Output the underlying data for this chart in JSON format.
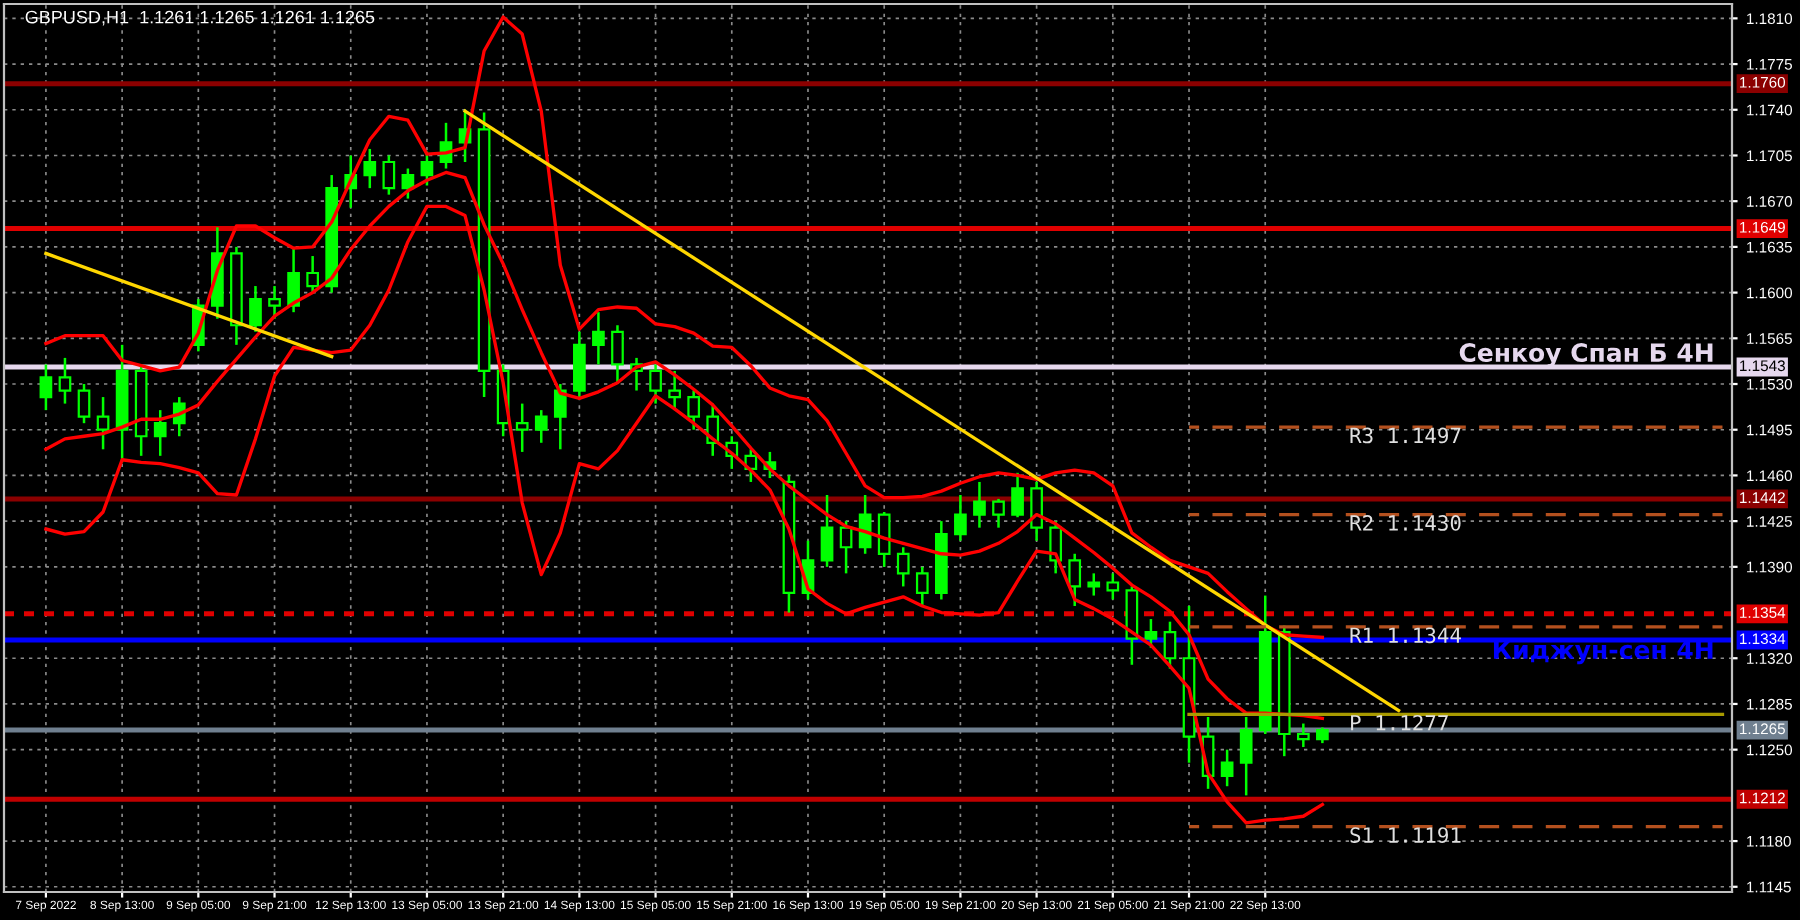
{
  "chart_data": {
    "type": "candlestick",
    "title": "GBPUSD,H1  1.1261 1.1265 1.1261 1.1265",
    "categories": [
      "7 Sep 2022",
      null,
      null,
      null,
      "8 Sep 13:00",
      null,
      null,
      null,
      "9 Sep 05:00",
      null,
      null,
      null,
      "9 Sep 21:00",
      null,
      null,
      null,
      "12 Sep 13:00",
      null,
      null,
      null,
      "13 Sep 05:00",
      null,
      null,
      null,
      "13 Sep 21:00",
      null,
      null,
      null,
      "14 Sep 13:00",
      null,
      null,
      null,
      "15 Sep 05:00",
      null,
      null,
      null,
      "15 Sep 21:00",
      null,
      null,
      null,
      "16 Sep 13:00",
      null,
      null,
      null,
      "19 Sep 05:00",
      null,
      null,
      null,
      "19 Sep 21:00",
      null,
      null,
      null,
      "20 Sep 13:00",
      null,
      null,
      null,
      "21 Sep 05:00",
      null,
      null,
      null,
      "21 Sep 21:00",
      null,
      null,
      null,
      "22 Sep 13:00",
      null,
      null,
      null,
      null,
      null,
      null,
      null,
      null,
      null,
      null,
      null,
      null,
      null,
      null,
      null,
      null,
      null,
      null,
      null,
      null,
      null,
      null,
      null,
      null
    ],
    "ohlc": [
      [
        1.152,
        1.1545,
        1.151,
        1.1535
      ],
      [
        1.1535,
        1.155,
        1.1515,
        1.1525
      ],
      [
        1.1525,
        1.153,
        1.15,
        1.1505
      ],
      [
        1.1505,
        1.152,
        1.148,
        1.1495
      ],
      [
        1.1495,
        1.156,
        1.147,
        1.154
      ],
      [
        1.154,
        1.1545,
        1.1475,
        1.149
      ],
      [
        1.149,
        1.151,
        1.1475,
        1.15
      ],
      [
        1.15,
        1.152,
        1.149,
        1.1515
      ],
      [
        1.156,
        1.1595,
        1.1555,
        1.159
      ],
      [
        1.159,
        1.165,
        1.158,
        1.163
      ],
      [
        1.163,
        1.1635,
        1.156,
        1.1575
      ],
      [
        1.1575,
        1.1605,
        1.157,
        1.1595
      ],
      [
        1.1595,
        1.1605,
        1.158,
        1.159
      ],
      [
        1.159,
        1.1635,
        1.1585,
        1.1615
      ],
      [
        1.1615,
        1.1628,
        1.16,
        1.1605
      ],
      [
        1.1605,
        1.169,
        1.16,
        1.168
      ],
      [
        1.168,
        1.1705,
        1.1665,
        1.169
      ],
      [
        1.169,
        1.171,
        1.168,
        1.17
      ],
      [
        1.17,
        1.1705,
        1.1675,
        1.168
      ],
      [
        1.168,
        1.1695,
        1.1672,
        1.169
      ],
      [
        1.169,
        1.1708,
        1.1682,
        1.17
      ],
      [
        1.17,
        1.173,
        1.1695,
        1.1715
      ],
      [
        1.1715,
        1.174,
        1.17,
        1.1725
      ],
      [
        1.1725,
        1.1738,
        1.152,
        1.154
      ],
      [
        1.154,
        1.1545,
        1.149,
        1.15
      ],
      [
        1.15,
        1.1515,
        1.1478,
        1.1495
      ],
      [
        1.1495,
        1.151,
        1.1485,
        1.1505
      ],
      [
        1.1505,
        1.153,
        1.148,
        1.1525
      ],
      [
        1.1525,
        1.157,
        1.152,
        1.156
      ],
      [
        1.156,
        1.1585,
        1.1545,
        1.157
      ],
      [
        1.157,
        1.1575,
        1.153,
        1.1545
      ],
      [
        1.1545,
        1.155,
        1.1525,
        1.154
      ],
      [
        1.154,
        1.1545,
        1.1515,
        1.1525
      ],
      [
        1.1525,
        1.154,
        1.151,
        1.152
      ],
      [
        1.152,
        1.1525,
        1.1495,
        1.1505
      ],
      [
        1.1505,
        1.1515,
        1.1475,
        1.1485
      ],
      [
        1.1485,
        1.149,
        1.1465,
        1.1475
      ],
      [
        1.1475,
        1.148,
        1.1455,
        1.1465
      ],
      [
        1.1465,
        1.1478,
        1.1458,
        1.147
      ],
      [
        1.1455,
        1.146,
        1.1355,
        1.137
      ],
      [
        1.137,
        1.141,
        1.1365,
        1.1395
      ],
      [
        1.1395,
        1.1445,
        1.139,
        1.142
      ],
      [
        1.142,
        1.1425,
        1.1385,
        1.1405
      ],
      [
        1.1405,
        1.1445,
        1.14,
        1.143
      ],
      [
        1.143,
        1.1432,
        1.139,
        1.14
      ],
      [
        1.14,
        1.1405,
        1.1375,
        1.1385
      ],
      [
        1.1385,
        1.139,
        1.136,
        1.137
      ],
      [
        1.137,
        1.1425,
        1.1365,
        1.1415
      ],
      [
        1.1415,
        1.1445,
        1.141,
        1.143
      ],
      [
        1.143,
        1.1455,
        1.142,
        1.144
      ],
      [
        1.144,
        1.1442,
        1.142,
        1.143
      ],
      [
        1.143,
        1.1462,
        1.1428,
        1.145
      ],
      [
        1.145,
        1.1455,
        1.141,
        1.142
      ],
      [
        1.142,
        1.1425,
        1.1385,
        1.1395
      ],
      [
        1.1395,
        1.14,
        1.136,
        1.1375
      ],
      [
        1.1375,
        1.1385,
        1.1368,
        1.1378
      ],
      [
        1.1378,
        1.1385,
        1.1365,
        1.1372
      ],
      [
        1.1372,
        1.1375,
        1.1315,
        1.1335
      ],
      [
        1.1335,
        1.135,
        1.1328,
        1.134
      ],
      [
        1.134,
        1.1348,
        1.1312,
        1.132
      ],
      [
        1.132,
        1.136,
        1.124,
        1.126
      ],
      [
        1.126,
        1.1275,
        1.122,
        1.123
      ],
      [
        1.123,
        1.125,
        1.1222,
        1.124
      ],
      [
        1.124,
        1.1275,
        1.1215,
        1.1265
      ],
      [
        1.1265,
        1.1368,
        1.1262,
        1.134
      ],
      [
        1.134,
        1.1345,
        1.1245,
        1.1262
      ],
      [
        1.1262,
        1.127,
        1.1252,
        1.1258
      ],
      [
        1.1258,
        1.1267,
        1.1255,
        1.1265
      ],
      null,
      null,
      null,
      null,
      null,
      null,
      null,
      null,
      null,
      null,
      null,
      null,
      null,
      null,
      null,
      null,
      null,
      null,
      null,
      null,
      null
    ],
    "color": "#00ff00",
    "series": [
      {
        "type": "line",
        "color": "#ff0000",
        "values": [
          1.1561,
          1.1567,
          1.1567,
          1.1567,
          1.1548,
          1.1544,
          1.154,
          1.1543,
          1.1569,
          1.1617,
          1.1651,
          1.1651,
          1.1642,
          1.1634,
          1.1635,
          1.1654,
          1.1686,
          1.1717,
          1.1735,
          1.1732,
          1.1706,
          1.1707,
          1.1711,
          1.1785,
          1.1811,
          1.1798,
          1.1739,
          1.1621,
          1.1572,
          1.1587,
          1.1589,
          1.1588,
          1.1576,
          1.1574,
          1.1569,
          1.1559,
          1.1558,
          1.1544,
          1.1527,
          1.1521,
          1.1518,
          1.1502,
          1.1477,
          1.1452,
          1.1443,
          1.1443,
          1.1444,
          1.1448,
          1.1454,
          1.1459,
          1.1462,
          1.146,
          1.1457,
          1.1462,
          1.1464,
          1.1462,
          1.1452,
          1.1416,
          1.1405,
          1.1395,
          1.139,
          1.1385,
          1.1371,
          1.1358,
          1.1345,
          1.1338,
          1.1337,
          1.1336,
          null,
          null,
          null,
          null,
          null,
          null,
          null,
          null,
          null,
          null,
          null,
          null,
          null,
          null,
          null,
          null,
          null,
          null,
          null,
          null,
          null
        ]
      },
      {
        "type": "line",
        "color": "#ff0000",
        "values": [
          1.148,
          1.1488,
          1.149,
          1.1492,
          1.1497,
          1.1503,
          1.1503,
          1.1507,
          1.1514,
          1.1532,
          1.1549,
          1.1566,
          1.1582,
          1.1592,
          1.16,
          1.1611,
          1.1633,
          1.1651,
          1.1666,
          1.1678,
          1.1686,
          1.1692,
          1.1688,
          1.1652,
          1.1622,
          1.1587,
          1.1554,
          1.1523,
          1.1519,
          1.1524,
          1.1531,
          1.1543,
          1.1547,
          1.1537,
          1.1526,
          1.1514,
          1.1498,
          1.1481,
          1.1465,
          1.1452,
          1.1441,
          1.143,
          1.1421,
          1.1417,
          1.1412,
          1.1408,
          1.1404,
          1.14,
          1.1399,
          1.1402,
          1.1408,
          1.1417,
          1.143,
          1.1423,
          1.1412,
          1.1401,
          1.1389,
          1.1376,
          1.1367,
          1.1356,
          1.1338,
          1.1304,
          1.1289,
          1.1278,
          1.1278,
          1.1277,
          1.1276,
          1.1274,
          null,
          null,
          null,
          null,
          null,
          null,
          null,
          null,
          null,
          null,
          null,
          null,
          null,
          null,
          null,
          null,
          null,
          null,
          null,
          null,
          null
        ]
      },
      {
        "type": "line",
        "color": "#ff0000",
        "values": [
          1.1419,
          1.1415,
          1.1417,
          1.1432,
          1.1472,
          1.147,
          1.1469,
          1.1466,
          1.1462,
          1.1446,
          1.1445,
          1.1488,
          1.1536,
          1.1558,
          1.1556,
          1.1554,
          1.1556,
          1.1575,
          1.1602,
          1.1639,
          1.1666,
          1.1666,
          1.1659,
          1.1602,
          1.1531,
          1.1439,
          1.1384,
          1.1416,
          1.1469,
          1.1465,
          1.1479,
          1.15,
          1.1521,
          1.1511,
          1.15,
          1.1488,
          1.1477,
          1.1464,
          1.1449,
          1.1419,
          1.1373,
          1.1362,
          1.1354,
          1.1359,
          1.1363,
          1.1367,
          1.136,
          1.1355,
          1.1354,
          1.1353,
          1.1355,
          1.1379,
          1.1402,
          1.14,
          1.1365,
          1.1358,
          1.135,
          1.134,
          1.133,
          1.1314,
          1.1297,
          1.1232,
          1.121,
          1.1194,
          1.1196,
          1.1197,
          1.1199,
          1.1208,
          null,
          null,
          null,
          null,
          null,
          null,
          null,
          null,
          null,
          null,
          null,
          null,
          null,
          null,
          null,
          null,
          null,
          null,
          null,
          null,
          null
        ]
      },
      {
        "type": "line",
        "color": "#ffd700",
        "values": [
          1.163,
          null,
          null,
          null,
          null,
          null,
          null,
          null,
          null,
          null,
          null,
          null,
          null,
          null,
          null,
          1.1551,
          null,
          null,
          null,
          null,
          null,
          null,
          null,
          null,
          null,
          null,
          null,
          null,
          null,
          null,
          null,
          null,
          null,
          null,
          null,
          null,
          null,
          null,
          null,
          null,
          null,
          null,
          null,
          null,
          null,
          null,
          null,
          null,
          null,
          null,
          null,
          null,
          null,
          null,
          null,
          null,
          null,
          null,
          null,
          null,
          null,
          null,
          null,
          null,
          null,
          null,
          null,
          null,
          null,
          null,
          null,
          null,
          null,
          null,
          null,
          null,
          null,
          null,
          null,
          null,
          null,
          null,
          null,
          null,
          null,
          null,
          null,
          null,
          null
        ]
      },
      {
        "type": "line",
        "color": "#ffd700",
        "values": [
          null,
          null,
          null,
          null,
          null,
          null,
          null,
          null,
          null,
          null,
          null,
          null,
          null,
          null,
          null,
          null,
          null,
          null,
          null,
          null,
          null,
          null,
          1.1739,
          null,
          null,
          null,
          null,
          null,
          null,
          null,
          null,
          null,
          null,
          null,
          null,
          null,
          null,
          null,
          null,
          null,
          null,
          null,
          null,
          null,
          null,
          null,
          null,
          null,
          null,
          null,
          null,
          null,
          null,
          null,
          null,
          null,
          null,
          null,
          null,
          null,
          null,
          null,
          null,
          null,
          null,
          null,
          null,
          null,
          null,
          null,
          null,
          1.128,
          null,
          null,
          null,
          null,
          null,
          null,
          null,
          null,
          null,
          null,
          null,
          null,
          null,
          null,
          null,
          null,
          null
        ]
      },
      {
        "type": "line",
        "name": "R3 1.1497",
        "color": "#b4501e",
        "line_style": "dashed",
        "values": [
          null,
          null,
          null,
          null,
          null,
          null,
          null,
          null,
          null,
          null,
          null,
          null,
          null,
          null,
          null,
          null,
          null,
          null,
          null,
          null,
          null,
          null,
          null,
          null,
          null,
          null,
          null,
          null,
          null,
          null,
          null,
          null,
          null,
          null,
          null,
          null,
          null,
          null,
          null,
          null,
          null,
          null,
          null,
          null,
          null,
          null,
          null,
          null,
          null,
          null,
          null,
          null,
          null,
          null,
          null,
          null,
          null,
          null,
          null,
          null,
          1.1497,
          1.1497,
          1.1497,
          1.1497,
          1.1497,
          1.1497,
          1.1497,
          1.1497,
          1.1497,
          1.1497,
          1.1497,
          1.1497,
          1.1497,
          1.1497,
          1.1497,
          1.1497,
          1.1497,
          1.1497,
          1.1497,
          1.1497,
          1.1497,
          1.1497,
          1.1497,
          1.1497,
          1.1497,
          1.1497,
          1.1497,
          1.1497,
          1.1497
        ]
      },
      {
        "type": "line",
        "name": "R2 1.1430",
        "color": "#b4501e",
        "line_style": "dashed",
        "values": [
          null,
          null,
          null,
          null,
          null,
          null,
          null,
          null,
          null,
          null,
          null,
          null,
          null,
          null,
          null,
          null,
          null,
          null,
          null,
          null,
          null,
          null,
          null,
          null,
          null,
          null,
          null,
          null,
          null,
          null,
          null,
          null,
          null,
          null,
          null,
          null,
          null,
          null,
          null,
          null,
          null,
          null,
          null,
          null,
          null,
          null,
          null,
          null,
          null,
          null,
          null,
          null,
          null,
          null,
          null,
          null,
          null,
          null,
          null,
          null,
          1.143,
          1.143,
          1.143,
          1.143,
          1.143,
          1.143,
          1.143,
          1.143,
          1.143,
          1.143,
          1.143,
          1.143,
          1.143,
          1.143,
          1.143,
          1.143,
          1.143,
          1.143,
          1.143,
          1.143,
          1.143,
          1.143,
          1.143,
          1.143,
          1.143,
          1.143,
          1.143,
          1.143,
          1.143
        ]
      },
      {
        "type": "line",
        "name": "R1 1.1344",
        "color": "#b4501e",
        "line_style": "dashed",
        "values": [
          null,
          null,
          null,
          null,
          null,
          null,
          null,
          null,
          null,
          null,
          null,
          null,
          null,
          null,
          null,
          null,
          null,
          null,
          null,
          null,
          null,
          null,
          null,
          null,
          null,
          null,
          null,
          null,
          null,
          null,
          null,
          null,
          null,
          null,
          null,
          null,
          null,
          null,
          null,
          null,
          null,
          null,
          null,
          null,
          null,
          null,
          null,
          null,
          null,
          null,
          null,
          null,
          null,
          null,
          null,
          null,
          null,
          null,
          null,
          null,
          1.1344,
          1.1344,
          1.1344,
          1.1344,
          1.1344,
          1.1344,
          1.1344,
          1.1344,
          1.1344,
          1.1344,
          1.1344,
          1.1344,
          1.1344,
          1.1344,
          1.1344,
          1.1344,
          1.1344,
          1.1344,
          1.1344,
          1.1344,
          1.1344,
          1.1344,
          1.1344,
          1.1344,
          1.1344,
          1.1344,
          1.1344,
          1.1344,
          1.1344
        ]
      },
      {
        "type": "line",
        "name": "P 1.1277",
        "color": "#a89a00",
        "line_style": "solid",
        "values": [
          null,
          null,
          null,
          null,
          null,
          null,
          null,
          null,
          null,
          null,
          null,
          null,
          null,
          null,
          null,
          null,
          null,
          null,
          null,
          null,
          null,
          null,
          null,
          null,
          null,
          null,
          null,
          null,
          null,
          null,
          null,
          null,
          null,
          null,
          null,
          null,
          null,
          null,
          null,
          null,
          null,
          null,
          null,
          null,
          null,
          null,
          null,
          null,
          null,
          null,
          null,
          null,
          null,
          null,
          null,
          null,
          null,
          null,
          null,
          null,
          1.1277,
          1.1277,
          1.1277,
          1.1277,
          1.1277,
          1.1277,
          1.1277,
          1.1277,
          1.1277,
          1.1277,
          1.1277,
          1.1277,
          1.1277,
          1.1277,
          1.1277,
          1.1277,
          1.1277,
          1.1277,
          1.1277,
          1.1277,
          1.1277,
          1.1277,
          1.1277,
          1.1277,
          1.1277,
          1.1277,
          1.1277,
          1.1277,
          1.1277
        ]
      },
      {
        "type": "line",
        "name": "S1 1.1191",
        "color": "#b4501e",
        "line_style": "dashed",
        "values": [
          null,
          null,
          null,
          null,
          null,
          null,
          null,
          null,
          null,
          null,
          null,
          null,
          null,
          null,
          null,
          null,
          null,
          null,
          null,
          null,
          null,
          null,
          null,
          null,
          null,
          null,
          null,
          null,
          null,
          null,
          null,
          null,
          null,
          null,
          null,
          null,
          null,
          null,
          null,
          null,
          null,
          null,
          null,
          null,
          null,
          null,
          null,
          null,
          null,
          null,
          null,
          null,
          null,
          null,
          null,
          null,
          null,
          null,
          null,
          null,
          1.1191,
          1.1191,
          1.1191,
          1.1191,
          1.1191,
          1.1191,
          1.1191,
          1.1191,
          1.1191,
          1.1191,
          1.1191,
          1.1191,
          1.1191,
          1.1191,
          1.1191,
          1.1191,
          1.1191,
          1.1191,
          1.1191,
          1.1191,
          1.1191,
          1.1191,
          1.1191,
          1.1191,
          1.1191,
          1.1191,
          1.1191,
          1.1191,
          1.1191
        ]
      }
    ],
    "ref_lines": [
      {
        "axis": "y",
        "value": 1.176,
        "label": "1.1760",
        "color": "#8b0000"
      },
      {
        "axis": "y",
        "value": 1.1649,
        "label": "1.1649",
        "color": "#e00000"
      },
      {
        "axis": "y",
        "value": 1.1543,
        "label": "1.1543",
        "color": "#e6d8ee"
      },
      {
        "axis": "y",
        "value": 1.1442,
        "label": "1.1442",
        "color": "#8b0000"
      },
      {
        "axis": "y",
        "value": 1.1354,
        "label": "1.1354",
        "color": "#e00000",
        "line_style": "dotted"
      },
      {
        "axis": "y",
        "value": 1.1334,
        "label": "1.1334",
        "color": "#0000ff"
      },
      {
        "axis": "y",
        "value": 1.1265,
        "label": "1.1265",
        "color": "#708090"
      },
      {
        "axis": "y",
        "value": 1.1212,
        "label": "1.1212",
        "color": "#c00000"
      }
    ],
    "annotations": [
      {
        "text": "Сенкоу Спан Б 4H",
        "y": 1.1543
      },
      {
        "text": "Киджун-сен 4H",
        "y": 1.1334
      }
    ],
    "ylim": [
      1.1141,
      1.1821
    ],
    "yticks": [
      {
        "value": 1.181,
        "label": "1.1810"
      },
      {
        "value": 1.1775,
        "label": "1.1775"
      },
      {
        "value": 1.174,
        "label": "1.1740"
      },
      {
        "value": 1.1705,
        "label": "1.1705"
      },
      {
        "value": 1.167,
        "label": "1.1670"
      },
      {
        "value": 1.1635,
        "label": "1.1635"
      },
      {
        "value": 1.16,
        "label": "1.1600"
      },
      {
        "value": 1.1565,
        "label": "1.1565"
      },
      {
        "value": 1.153,
        "label": "1.1530"
      },
      {
        "value": 1.1495,
        "label": "1.1495"
      },
      {
        "value": 1.146,
        "label": "1.1460"
      },
      {
        "value": 1.1425,
        "label": "1.1425"
      },
      {
        "value": 1.139,
        "label": "1.1390"
      },
      {
        "value": 1.132,
        "label": "1.1320"
      },
      {
        "value": 1.1285,
        "label": "1.1285"
      },
      {
        "value": 1.125,
        "label": "1.1250"
      },
      {
        "value": 1.118,
        "label": "1.1180"
      },
      {
        "value": 1.1145,
        "label": "1.1145"
      }
    ],
    "grid": true
  }
}
